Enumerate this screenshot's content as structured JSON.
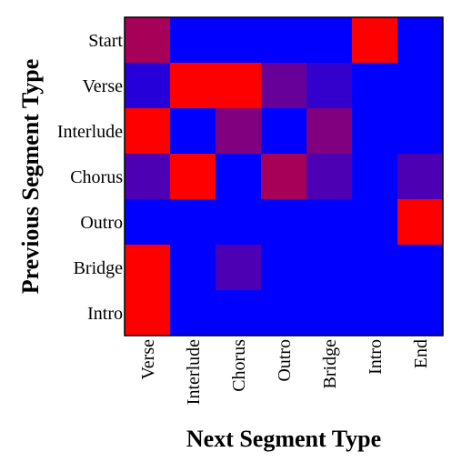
{
  "chart_data": {
    "type": "heatmap",
    "title": "",
    "xlabel": "Next Segment Type",
    "ylabel": "Previous Segment Type",
    "x_categories": [
      "Verse",
      "Interlude",
      "Chorus",
      "Outro",
      "Bridge",
      "Intro",
      "End"
    ],
    "y_categories": [
      "Start",
      "Verse",
      "Interlude",
      "Chorus",
      "Outro",
      "Bridge",
      "Intro"
    ],
    "values": [
      [
        0.65,
        0.0,
        0.0,
        0.0,
        0.0,
        1.0,
        0.0
      ],
      [
        0.15,
        1.0,
        1.0,
        0.4,
        0.2,
        0.0,
        0.0
      ],
      [
        1.0,
        0.0,
        0.5,
        0.0,
        0.5,
        0.0,
        0.0
      ],
      [
        0.3,
        1.0,
        0.0,
        0.65,
        0.3,
        0.0,
        0.3
      ],
      [
        0.0,
        0.0,
        0.0,
        0.0,
        0.0,
        0.0,
        1.0
      ],
      [
        1.0,
        0.0,
        0.3,
        0.0,
        0.0,
        0.0,
        0.0
      ],
      [
        1.0,
        0.0,
        0.0,
        0.0,
        0.0,
        0.0,
        0.0
      ]
    ],
    "value_range": [
      0,
      1
    ],
    "colormap": {
      "low": "#0000ff",
      "high": "#ff0000"
    },
    "grid": false,
    "legend": "none"
  }
}
